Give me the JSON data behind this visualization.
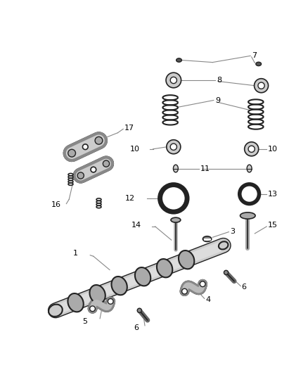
{
  "bg_color": "#ffffff",
  "lc": "#888888",
  "pc": "#222222",
  "fc_dark": "#333333",
  "fc_mid": "#888888",
  "fc_light": "#bbbbbb"
}
